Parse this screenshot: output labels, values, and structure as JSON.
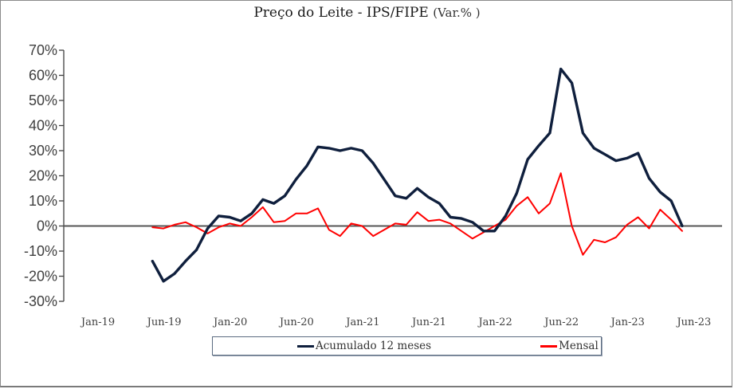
{
  "chart_data": {
    "type": "line",
    "title": "Preço do Leite - IPS/FIPE",
    "title_suffix": "(Var.% )",
    "xlabel": "",
    "ylabel": "",
    "ylim": [
      -30,
      70
    ],
    "y_ticks": [
      "70%",
      "60%",
      "50%",
      "40%",
      "30%",
      "20%",
      "10%",
      "0%",
      "-10%",
      "-20%",
      "-30%"
    ],
    "y_tick_values": [
      70,
      60,
      50,
      40,
      30,
      20,
      10,
      0,
      -10,
      -20,
      -30
    ],
    "x_tick_labels": [
      "Jan-19",
      "Jun-19",
      "Jan-20",
      "Jun-20",
      "Jan-21",
      "Jun-21",
      "Jan-22",
      "Jun-22",
      "Jan-23",
      "Jun-23"
    ],
    "x_start_month_index": 5,
    "grid": false,
    "legend_position": "bottom",
    "series": [
      {
        "name": "Acumulado 12 meses",
        "color": "#0f1f3d",
        "values": [
          -14,
          -22,
          -19,
          -14,
          -9.5,
          -1,
          4,
          3.5,
          2,
          5,
          10.5,
          9,
          12,
          18.5,
          24,
          31.5,
          31,
          30,
          31,
          30,
          25,
          18.5,
          12,
          11,
          15,
          11.5,
          9,
          3.5,
          3,
          1.5,
          -2,
          -2,
          4,
          13,
          26.5,
          32,
          37,
          62.5,
          57,
          37,
          31,
          28.5,
          26,
          27,
          29,
          19,
          13.5,
          10,
          0
        ]
      },
      {
        "name": "Mensal",
        "color": "#ff0000",
        "values": [
          -0.5,
          -1,
          0.5,
          1.5,
          -0.5,
          -3,
          -0.5,
          1,
          0,
          3.5,
          7.5,
          1.5,
          2,
          5,
          5,
          7,
          -1.5,
          -4,
          1,
          0,
          -4,
          -1.5,
          1,
          0.5,
          5.5,
          2,
          2.5,
          1,
          -2,
          -5,
          -2.5,
          0,
          2.5,
          8,
          11.5,
          5,
          9,
          21,
          0,
          -11.5,
          -5.5,
          -6.5,
          -4.5,
          0.5,
          3.5,
          -1,
          6.5,
          2.5,
          -2
        ]
      }
    ]
  }
}
